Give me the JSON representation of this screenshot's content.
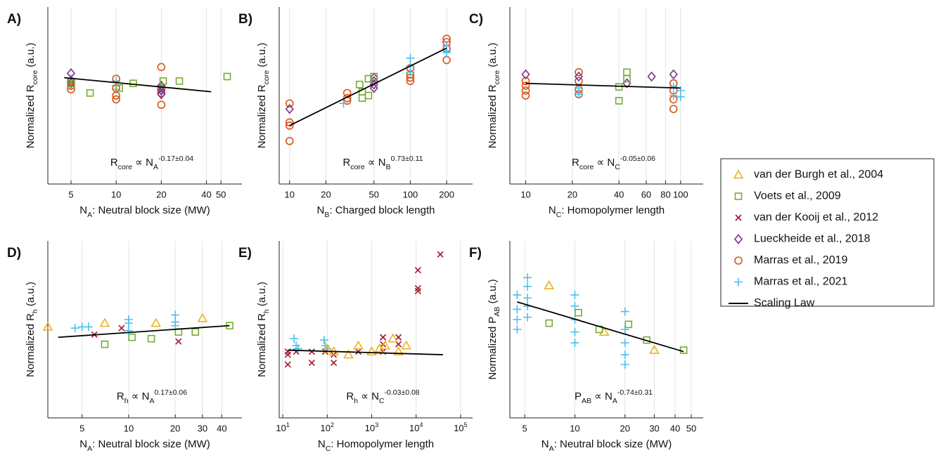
{
  "chart_data": [
    {
      "type": "scatter",
      "panel": "A)",
      "xscale": "log",
      "yscale": "log",
      "grid": true,
      "xlabel": [
        {
          "text": "N"
        },
        {
          "text": "A",
          "sub": true
        },
        {
          "text": ": Neutral block size (MW)"
        }
      ],
      "ylabel": [
        {
          "text": "Normalized R"
        },
        {
          "text": "core",
          "sub": true
        },
        {
          "text": " (a.u.)"
        }
      ],
      "annotation": [
        {
          "text": "R"
        },
        {
          "text": "core",
          "sub": true
        },
        {
          "text": " ∝ N"
        },
        {
          "text": "A",
          "sub": true
        },
        {
          "text": "-0.17±0.04",
          "sup": true
        }
      ],
      "xlim": [
        3.5,
        69
      ],
      "xticks": [
        5,
        10,
        20,
        40,
        50
      ],
      "ylim": [
        0.5,
        2
      ],
      "series": [
        {
          "name": "Marras et al., 2021",
          "x": [
            5,
            5,
            5,
            5,
            10,
            10,
            10,
            20,
            20,
            20
          ],
          "values": [
            1.14,
            1.12,
            1.1,
            1.08,
            1.12,
            1.08,
            1.05,
            1.08,
            1.05,
            1.02
          ]
        },
        {
          "name": "Marras et al., 2019",
          "x": [
            5,
            5,
            5,
            10,
            10,
            10,
            10,
            20,
            20,
            20,
            20
          ],
          "values": [
            1.12,
            1.08,
            1.05,
            1.14,
            1.06,
            1.0,
            0.97,
            1.25,
            1.06,
            1.02,
            0.93
          ]
        },
        {
          "name": "Lueckheide et al., 2018",
          "x": [
            5,
            5,
            20,
            20,
            20
          ],
          "values": [
            1.19,
            1.1,
            1.08,
            1.04,
            1.01
          ]
        },
        {
          "name": "Voets et al., 2009",
          "x": [
            5,
            6.7,
            10.5,
            13,
            20.6,
            26.4,
            55
          ],
          "values": [
            1.1,
            1.02,
            1.06,
            1.1,
            1.12,
            1.12,
            1.16
          ]
        },
        {
          "name": "Scaling Law",
          "x": [
            4.5,
            43
          ],
          "values": [
            1.15,
            1.03
          ]
        }
      ]
    },
    {
      "type": "scatter",
      "panel": "B)",
      "xscale": "log",
      "yscale": "log",
      "grid": true,
      "xlabel": [
        {
          "text": "N"
        },
        {
          "text": "B",
          "sub": true
        },
        {
          "text": ": Charged block length"
        }
      ],
      "ylabel": [
        {
          "text": "Normalized R"
        },
        {
          "text": "core",
          "sub": true
        },
        {
          "text": " (a.u.)"
        }
      ],
      "annotation": [
        {
          "text": "R"
        },
        {
          "text": "core",
          "sub": true
        },
        {
          "text": " ∝ N"
        },
        {
          "text": "B",
          "sub": true
        },
        {
          "text": "0.73±0.11",
          "sup": true
        }
      ],
      "xlim": [
        8.2,
        328
      ],
      "xticks": [
        10,
        20,
        50,
        100,
        200
      ],
      "ylim": [
        0.5,
        2
      ],
      "series": [
        {
          "name": "Marras et al., 2019",
          "x": [
            10,
            10,
            10,
            10,
            30,
            30,
            30,
            100,
            100,
            100,
            100,
            200,
            200,
            200,
            200
          ],
          "values": [
            0.94,
            0.81,
            0.79,
            0.7,
            1.02,
            0.98,
            0.96,
            1.24,
            1.18,
            1.15,
            1.12,
            1.56,
            1.52,
            1.44,
            1.32
          ]
        },
        {
          "name": "Lueckheide et al., 2018",
          "x": [
            10,
            50,
            50,
            50,
            50
          ],
          "values": [
            0.9,
            1.15,
            1.12,
            1.09,
            1.06
          ]
        },
        {
          "name": "Marras et al., 2021",
          "x": [
            28,
            100,
            100,
            100,
            200,
            200,
            200
          ],
          "values": [
            0.94,
            1.34,
            1.26,
            1.2,
            1.48,
            1.42,
            1.4
          ]
        },
        {
          "name": "Voets et al., 2009",
          "x": [
            38,
            40,
            40,
            45,
            45,
            50
          ],
          "values": [
            1.09,
            1.03,
            0.98,
            1.14,
            1.0,
            1.16
          ]
        },
        {
          "name": "Scaling Law",
          "x": [
            10,
            200
          ],
          "values": [
            0.79,
            1.45
          ]
        }
      ]
    },
    {
      "type": "scatter",
      "panel": "C)",
      "xscale": "log",
      "yscale": "log",
      "grid": true,
      "xlabel": [
        {
          "text": "N"
        },
        {
          "text": "C",
          "sub": true
        },
        {
          "text": ": Homopolymer length"
        }
      ],
      "ylabel": [
        {
          "text": "Normalized R"
        },
        {
          "text": "core",
          "sub": true
        },
        {
          "text": " (a.u.)"
        }
      ],
      "annotation": [
        {
          "text": "R"
        },
        {
          "text": "core",
          "sub": true
        },
        {
          "text": " ∝ N"
        },
        {
          "text": "C",
          "sub": true
        },
        {
          "text": "-0.05±0.06",
          "sup": true
        }
      ],
      "xlim": [
        7.9,
        140
      ],
      "xticks": [
        10,
        20,
        40,
        60,
        80,
        100
      ],
      "ylim": [
        0.5,
        2
      ],
      "series": [
        {
          "name": "Marras et al., 2019",
          "x": [
            10,
            10,
            10,
            10,
            22,
            22,
            22,
            22,
            90,
            90,
            90,
            90
          ],
          "values": [
            1.12,
            1.08,
            1.04,
            1.0,
            1.2,
            1.12,
            1.05,
            1.01,
            1.1,
            1.04,
            0.97,
            0.9
          ]
        },
        {
          "name": "Lueckheide et al., 2018",
          "x": [
            10,
            22,
            45,
            65,
            90
          ],
          "values": [
            1.18,
            1.16,
            1.1,
            1.16,
            1.18
          ]
        },
        {
          "name": "Voets et al., 2009",
          "x": [
            40,
            40,
            45,
            45
          ],
          "values": [
            0.96,
            1.07,
            1.2,
            1.14
          ]
        },
        {
          "name": "Marras et al., 2021",
          "x": [
            22,
            22,
            90,
            90,
            100,
            100
          ],
          "values": [
            1.06,
            1.01,
            1.07,
            1.0,
            1.04,
            0.99
          ]
        },
        {
          "name": "Scaling Law",
          "x": [
            10,
            100
          ],
          "values": [
            1.1,
            1.06
          ]
        }
      ]
    },
    {
      "type": "scatter",
      "panel": "D)",
      "xscale": "log",
      "yscale": "log",
      "grid": true,
      "xlabel": [
        {
          "text": "N"
        },
        {
          "text": "A",
          "sub": true
        },
        {
          "text": ": Neutral block size (MW)"
        }
      ],
      "ylabel": [
        {
          "text": "Normalized R"
        },
        {
          "text": "h",
          "sub": true
        },
        {
          "text": " (a.u.)"
        }
      ],
      "annotation": [
        {
          "text": "R"
        },
        {
          "text": "h",
          "sub": true
        },
        {
          "text": " ∝ N"
        },
        {
          "text": "A",
          "sub": true
        },
        {
          "text": "0.17±0.06",
          "sup": true
        }
      ],
      "xlim": [
        3,
        54
      ],
      "xticks": [
        5,
        10,
        20,
        30,
        40
      ],
      "ylim": [
        0.5,
        2
      ],
      "series": [
        {
          "name": "van der Burgh et al., 2004",
          "x": [
            3,
            7,
            15,
            30
          ],
          "values": [
            1.02,
            1.05,
            1.05,
            1.09
          ]
        },
        {
          "name": "Voets et al., 2009",
          "x": [
            7,
            10.5,
            14,
            21,
            27,
            45
          ],
          "values": [
            0.89,
            0.94,
            0.93,
            0.98,
            0.98,
            1.03
          ]
        },
        {
          "name": "van der Kooij et al., 2012",
          "x": [
            6,
            9,
            21
          ],
          "values": [
            0.96,
            1.01,
            0.91
          ]
        },
        {
          "name": "Marras et al., 2021",
          "x": [
            4.5,
            5,
            5.5,
            10,
            10,
            10,
            20,
            20,
            20
          ],
          "values": [
            1.01,
            1.02,
            1.02,
            1.08,
            1.05,
            0.99,
            1.12,
            1.06,
            1.03
          ]
        },
        {
          "name": "Scaling Law",
          "x": [
            3.5,
            45
          ],
          "values": [
            0.94,
            1.03
          ]
        }
      ]
    },
    {
      "type": "scatter",
      "panel": "E)",
      "xscale": "log",
      "yscale": "log",
      "grid": true,
      "xlabel": [
        {
          "text": "N"
        },
        {
          "text": "C",
          "sub": true
        },
        {
          "text": ": Homopolymer length"
        }
      ],
      "ylabel": [
        {
          "text": "Normalized R"
        },
        {
          "text": "h",
          "sub": true
        },
        {
          "text": " (a.u.)"
        }
      ],
      "annotation": [
        {
          "text": "R"
        },
        {
          "text": "h",
          "sub": true
        },
        {
          "text": " ∝ N"
        },
        {
          "text": "C",
          "sub": true
        },
        {
          "text": "-0.03±0.08",
          "sup": true
        }
      ],
      "xlim": [
        8.3,
        186000
      ],
      "xticks": [
        {
          "value": 10,
          "label": [
            {
              "text": "10"
            },
            {
              "text": "1",
              "sup": true
            }
          ]
        },
        {
          "value": 100,
          "label": [
            {
              "text": "10"
            },
            {
              "text": "2",
              "sup": true
            }
          ]
        },
        {
          "value": 1000,
          "label": [
            {
              "text": "10"
            },
            {
              "text": "3",
              "sup": true
            }
          ]
        },
        {
          "value": 10000,
          "label": [
            {
              "text": "10"
            },
            {
              "text": "4",
              "sup": true
            }
          ]
        },
        {
          "value": 100000,
          "label": [
            {
              "text": "10"
            },
            {
              "text": "5",
              "sup": true
            }
          ]
        }
      ],
      "ylim": [
        0.5,
        2
      ],
      "series": [
        {
          "name": "van der Kooij et al., 2012",
          "x": [
            13,
            13,
            13,
            20,
            45,
            45,
            90,
            140,
            140,
            500,
            1800,
            1800,
            1800,
            4000,
            4000,
            11000,
            11000,
            11000,
            35000
          ],
          "values": [
            0.84,
            0.76,
            0.82,
            0.84,
            0.84,
            0.77,
            0.84,
            0.82,
            0.77,
            0.84,
            0.94,
            0.89,
            0.84,
            0.94,
            0.89,
            1.59,
            1.38,
            1.35,
            1.8
          ]
        },
        {
          "name": "Marras et al., 2021",
          "x": [
            18,
            20,
            22,
            85,
            90,
            100
          ],
          "values": [
            0.93,
            0.88,
            0.86,
            0.92,
            0.88,
            0.86
          ]
        },
        {
          "name": "van der Burgh et al., 2004",
          "x": [
            100,
            140,
            300,
            500,
            1000,
            1500,
            2000,
            3000,
            4000,
            6000
          ],
          "values": [
            0.86,
            0.84,
            0.82,
            0.88,
            0.84,
            0.86,
            0.88,
            0.93,
            0.84,
            0.88
          ]
        },
        {
          "name": "Scaling Law",
          "x": [
            13,
            40000
          ],
          "values": [
            0.85,
            0.82
          ]
        }
      ]
    },
    {
      "type": "scatter",
      "panel": "F)",
      "xscale": "log",
      "yscale": "log",
      "grid": true,
      "xlabel": [
        {
          "text": "N"
        },
        {
          "text": "A",
          "sub": true
        },
        {
          "text": ": Neutral block size (MW)"
        }
      ],
      "ylabel": [
        {
          "text": "Normalized P"
        },
        {
          "text": "AB",
          "sub": true
        },
        {
          "text": " (a.u.)"
        }
      ],
      "annotation": [
        {
          "text": "P"
        },
        {
          "text": "AB",
          "sub": true
        },
        {
          "text": " ∝ N"
        },
        {
          "text": "A",
          "sub": true
        },
        {
          "text": "-0.74±0.31",
          "sup": true
        }
      ],
      "xlim": [
        4.07,
        59
      ],
      "xticks": [
        5,
        10,
        20,
        30,
        40,
        50
      ],
      "ylim": [
        0.5,
        2
      ],
      "series": [
        {
          "name": "Marras et al., 2021",
          "x": [
            4.5,
            4.5,
            4.5,
            4.5,
            5.2,
            5.2,
            5.2,
            5.2,
            5.2,
            10,
            10,
            10,
            10,
            10,
            20,
            20,
            20,
            20,
            20
          ],
          "values": [
            1.31,
            1.17,
            1.08,
            1.0,
            1.5,
            1.4,
            1.28,
            1.2,
            1.1,
            1.31,
            1.2,
            1.08,
            0.98,
            0.9,
            1.15,
            1.0,
            0.9,
            0.82,
            0.76
          ]
        },
        {
          "name": "van der Burgh et al., 2004",
          "x": [
            7,
            15,
            30
          ],
          "values": [
            1.41,
            0.98,
            0.85
          ]
        },
        {
          "name": "Voets et al., 2009",
          "x": [
            7,
            10.5,
            14,
            21,
            27,
            45
          ],
          "values": [
            1.05,
            1.14,
            1.0,
            1.04,
            0.92,
            0.85
          ]
        },
        {
          "name": "Scaling Law",
          "x": [
            4.5,
            45
          ],
          "values": [
            1.24,
            0.84
          ]
        }
      ]
    }
  ],
  "legend": {
    "entries": [
      {
        "name": "van der Burgh et al., 2004",
        "color": "#EDB120",
        "marker": "triangle"
      },
      {
        "name": "Voets et al., 2009",
        "color": "#77AC30",
        "marker": "square"
      },
      {
        "name": "van der Kooij et al., 2012",
        "color": "#A2142F",
        "marker": "x"
      },
      {
        "name": "Lueckheide et al., 2018",
        "color": "#7E2F8E",
        "marker": "diamond"
      },
      {
        "name": "Marras et al., 2019",
        "color": "#D95319",
        "marker": "circle"
      },
      {
        "name": "Marras et al., 2021",
        "color": "#4DBEEE",
        "marker": "plus"
      },
      {
        "name": "Scaling Law",
        "color": "#000000",
        "marker": "line"
      }
    ]
  }
}
